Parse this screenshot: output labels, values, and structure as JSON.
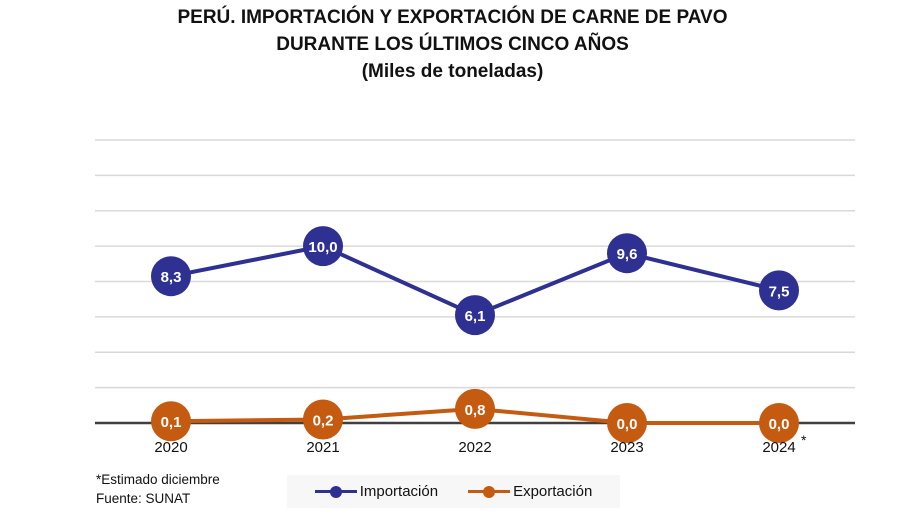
{
  "title": {
    "line1": "PERÚ. IMPORTACIÓN Y EXPORTACIÓN DE CARNE DE PAVO",
    "line2": "DURANTE LOS ÚLTIMOS CINCO AÑOS",
    "line3": "(Miles de toneladas)"
  },
  "footnote": {
    "note": "*Estimado diciembre",
    "source": "Fuente: SUNAT"
  },
  "colors": {
    "importacion": "#2E3192",
    "exportacion": "#C55A11",
    "grid": "#d9d9d9",
    "axis": "#404040"
  },
  "chart_data": {
    "type": "line",
    "title": "PERÚ. IMPORTACIÓN Y EXPORTACIÓN DE CARNE DE PAVO DURANTE LOS ÚLTIMOS CINCO AÑOS (Miles de toneladas)",
    "xlabel": "",
    "ylabel": "",
    "x": [
      "2020",
      "2021",
      "2022",
      "2023",
      "2024"
    ],
    "x_marks": [
      "",
      "",
      "",
      "",
      "*"
    ],
    "ylim": [
      0,
      16
    ],
    "grid_step": 2,
    "grid": true,
    "y_tick_labels_shown": false,
    "legend": "bottom",
    "series": [
      {
        "name": "Importación",
        "values": [
          8.3,
          10.0,
          6.1,
          9.6,
          7.5
        ],
        "labels": [
          "8,3",
          "10,0",
          "6,1",
          "9,6",
          "7,5"
        ]
      },
      {
        "name": "Exportación",
        "values": [
          0.1,
          0.2,
          0.8,
          0.0,
          0.0
        ],
        "labels": [
          "0,1",
          "0,2",
          "0,8",
          "0,0",
          "0,0"
        ]
      }
    ]
  }
}
